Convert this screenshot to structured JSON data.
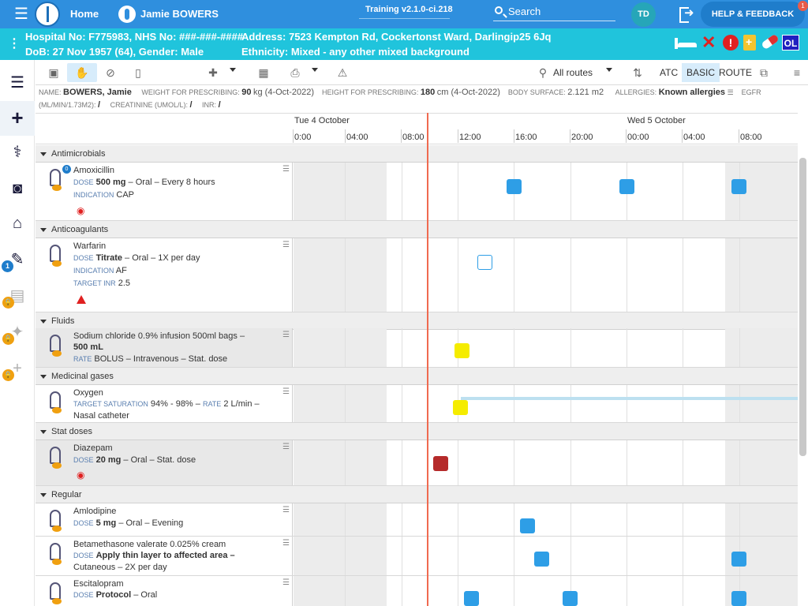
{
  "topbar": {
    "home_label": "Home",
    "user_name": "Jamie BOWERS",
    "version": "Training v2.1.0-ci.218",
    "search_label": "Search",
    "avatar_initials": "TD",
    "help_label": "HELP & FEEDBACK",
    "help_badge": "1"
  },
  "patient": {
    "row1": "Hospital No: F775983, NHS No: ###-###-####",
    "row2": "DoB: 27 Nov 1957 (64), Gender: Male",
    "address": "Address: 7523 Kempton Rd, Cockertonst Ward, Darlingip25 6Jq",
    "ethnicity": "Ethnicity: Mixed - any other mixed background",
    "ol_badge": "OL"
  },
  "leftnav": {
    "badge_count": "1",
    "icons": [
      "list-icon",
      "plus-icon",
      "stethoscope-icon",
      "camera-icon",
      "home-icon",
      "edit-icon",
      "chart-icon",
      "walker-icon",
      "add-icon"
    ]
  },
  "toolbar": {
    "routes_label": "All routes",
    "atc_label": "ATC",
    "basic_label": "BASIC",
    "route_label": "ROUTE"
  },
  "info": {
    "name_label": "NAME:",
    "name_value": "BOWERS, Jamie",
    "weight_label": "WEIGHT FOR PRESCRIBING:",
    "weight_value": "90",
    "weight_unit": "kg (4-Oct-2022)",
    "height_label": "HEIGHT FOR PRESCRIBING:",
    "height_value": "180",
    "height_unit": "cm (4-Oct-2022)",
    "surface_label": "BODY SURFACE:",
    "surface_value": "2.121 m2",
    "allergies_label": "ALLERGIES:",
    "allergies_value": "Known allergies",
    "egfr_label": "EGFR",
    "egfr_unit": "(ML/MIN/1.73M2):",
    "egfr_value": "/",
    "creatinine_label": "CREATININE (UMOL/L):",
    "creatinine_value": "/",
    "inr_label": "INR:",
    "inr_value": "/"
  },
  "timeline": {
    "day1": "Tue 4 October",
    "day2": "Wed 5 October",
    "ticks": [
      "0:00",
      "04:00",
      "08:00",
      "12:00",
      "16:00",
      "20:00",
      "00:00",
      "04:00",
      "08:00"
    ]
  },
  "sections": {
    "antimicrobials": "Antimicrobials",
    "anticoagulants": "Anticoagulants",
    "fluids": "Fluids",
    "gases": "Medicinal gases",
    "stat": "Stat doses",
    "regular": "Regular"
  },
  "meds": {
    "amoxicillin": {
      "name": "Amoxicillin",
      "dose_label": "DOSE",
      "dose": "500 mg",
      "detail": " – Oral – Every 8 hours",
      "ind_label": "INDICATION",
      "ind": "CAP",
      "badge": "0"
    },
    "warfarin": {
      "name": "Warfarin",
      "dose_label": "DOSE",
      "dose": "Titrate",
      "detail": " – Oral – 1X per day",
      "ind_label": "INDICATION",
      "ind": "AF",
      "inr_label": "TARGET INR",
      "inr": "2.5"
    },
    "sodium": {
      "name": "Sodium chloride 0.9% infusion 500ml bags –",
      "dose": "500 mL",
      "rate_label": "RATE",
      "rate": "BOLUS – Intravenous – Stat. dose"
    },
    "oxygen": {
      "name": "Oxygen",
      "sat_label": "TARGET SATURATION",
      "sat": "94% - 98% –",
      "rate_label": "RATE",
      "rate": "2 L/min –",
      "route": "Nasal catheter"
    },
    "diazepam": {
      "name": "Diazepam",
      "dose_label": "DOSE",
      "dose": "20 mg",
      "detail": " – Oral – Stat. dose"
    },
    "amlodipine": {
      "name": "Amlodipine",
      "dose_label": "DOSE",
      "dose": "5 mg",
      "detail": " – Oral – Evening"
    },
    "betamethasone": {
      "name": "Betamethasone valerate 0.025% cream",
      "dose_label": "DOSE",
      "dose": "Apply thin layer to affected area –",
      "route": "Cutaneous – 2X per day"
    },
    "escitalopram": {
      "name": "Escitalopram",
      "dose_label": "DOSE",
      "dose": "Protocol",
      "detail": " – Oral"
    }
  },
  "colors": {
    "topbar": "#2f8fde",
    "patientbar": "#20c4dc",
    "scheduled_dose": "#2e9ee6",
    "stat_pending": "#f5ec00",
    "given_stat": "#b52a2a",
    "now_line": "#f06a50"
  }
}
